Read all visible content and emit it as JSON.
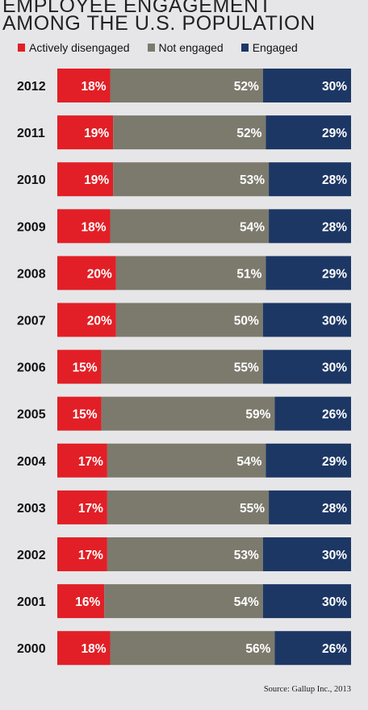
{
  "chart_data": {
    "type": "bar",
    "orientation": "horizontal",
    "stacked": true,
    "title_lines": [
      "EMPLOYEE ENGAGEMENT",
      "AMONG THE U.S. POPULATION"
    ],
    "categories": [
      "2012",
      "2011",
      "2010",
      "2009",
      "2008",
      "2007",
      "2006",
      "2005",
      "2004",
      "2003",
      "2002",
      "2001",
      "2000"
    ],
    "series": [
      {
        "name": "Actively disengaged",
        "color": "#e21f26",
        "values": [
          18,
          19,
          19,
          18,
          20,
          20,
          15,
          15,
          17,
          17,
          17,
          16,
          18
        ],
        "labels": [
          "18%",
          "19%",
          "19%",
          "18%",
          "20%",
          "20%",
          "15%",
          "15%",
          "17%",
          "17%",
          "17%",
          "16%",
          "18%"
        ]
      },
      {
        "name": "Not engaged",
        "color": "#7c7a6d",
        "values": [
          52,
          52,
          53,
          54,
          51,
          50,
          55,
          59,
          54,
          55,
          53,
          54,
          56
        ],
        "labels": [
          "52%",
          "52%",
          "53%",
          "54%",
          "51%",
          "50%",
          "55%",
          "59%",
          "54%",
          "55%",
          "53%",
          "54%",
          "56%"
        ]
      },
      {
        "name": "Engaged",
        "color": "#1d3765",
        "values": [
          30,
          29,
          28,
          28,
          29,
          30,
          30,
          26,
          29,
          28,
          30,
          30,
          26
        ],
        "labels": [
          "30%",
          "29%",
          "28%",
          "28%",
          "29%",
          "30%",
          "30%",
          "26%",
          "29%",
          "28%",
          "30%",
          "30%",
          "26%"
        ]
      }
    ],
    "legend_position": "top",
    "grid": false,
    "source": "Source: Gallup Inc., 2013"
  }
}
